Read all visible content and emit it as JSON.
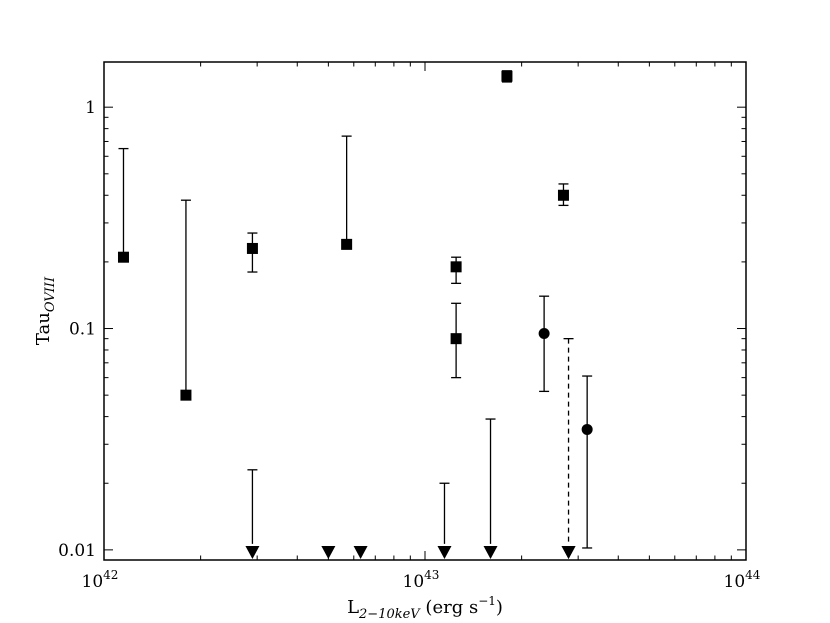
{
  "chart_data": {
    "type": "scatter",
    "xscale": "log",
    "yscale": "log",
    "xlim": [
      1e+42,
      1e+44
    ],
    "ylim": [
      0.009,
      1.6
    ],
    "xlabel": {
      "base": "L",
      "sub": "2−10keV",
      "unit": " (erg s",
      "unit_sup": "−1",
      "unit_end": ")"
    },
    "ylabel": {
      "base": "Tau",
      "sub": "OVIII"
    },
    "x_ticks": [
      {
        "value": 1e+42,
        "base": "10",
        "exp": "42"
      },
      {
        "value": 1e+43,
        "base": "10",
        "exp": "43"
      },
      {
        "value": 1e+44,
        "base": "10",
        "exp": "44"
      }
    ],
    "y_ticks": [
      {
        "value": 0.01,
        "label": "0.01"
      },
      {
        "value": 0.1,
        "label": "0.1"
      },
      {
        "value": 1,
        "label": "1"
      }
    ],
    "grid": false,
    "legend": "none",
    "series": [
      {
        "marker": "square",
        "points": [
          {
            "x": 1.15e+42,
            "y": 0.21,
            "ylo": 0.21,
            "yhi": 0.65
          },
          {
            "x": 1.8e+42,
            "y": 0.05,
            "ylo": 0.05,
            "yhi": 0.38
          },
          {
            "x": 2.9e+42,
            "y": 0.23,
            "ylo": 0.18,
            "yhi": 0.27
          },
          {
            "x": 5.7e+42,
            "y": 0.24,
            "ylo": 0.24,
            "yhi": 0.74
          },
          {
            "x": 1.25e+43,
            "y": 0.19,
            "ylo": 0.16,
            "yhi": 0.21
          },
          {
            "x": 1.25e+43,
            "y": 0.09,
            "ylo": 0.06,
            "yhi": 0.13
          },
          {
            "x": 1.8e+43,
            "y": 1.38,
            "ylo": 1.3,
            "yhi": 1.46
          },
          {
            "x": 2.7e+43,
            "y": 0.4,
            "ylo": 0.36,
            "yhi": 0.45
          }
        ]
      },
      {
        "marker": "circle",
        "points": [
          {
            "x": 2.35e+43,
            "y": 0.095,
            "ylo": 0.052,
            "yhi": 0.14
          },
          {
            "x": 3.2e+43,
            "y": 0.035,
            "ylo": 0.0102,
            "yhi": 0.061
          }
        ]
      },
      {
        "marker": "triangle-down",
        "type": "upper-limit",
        "points": [
          {
            "x": 2.9e+42,
            "y": 0.01,
            "yhi": 0.023
          },
          {
            "x": 5e+42,
            "y": 0.01
          },
          {
            "x": 6.3e+42,
            "y": 0.01
          },
          {
            "x": 1.15e+43,
            "y": 0.01,
            "yhi": 0.02
          },
          {
            "x": 1.6e+43,
            "y": 0.01,
            "yhi": 0.039
          },
          {
            "x": 2.8e+43,
            "y": 0.01,
            "yhi": 0.09,
            "dashed": true
          },
          {
            "x": 2.8e+43,
            "y": 0.01
          }
        ]
      }
    ]
  }
}
